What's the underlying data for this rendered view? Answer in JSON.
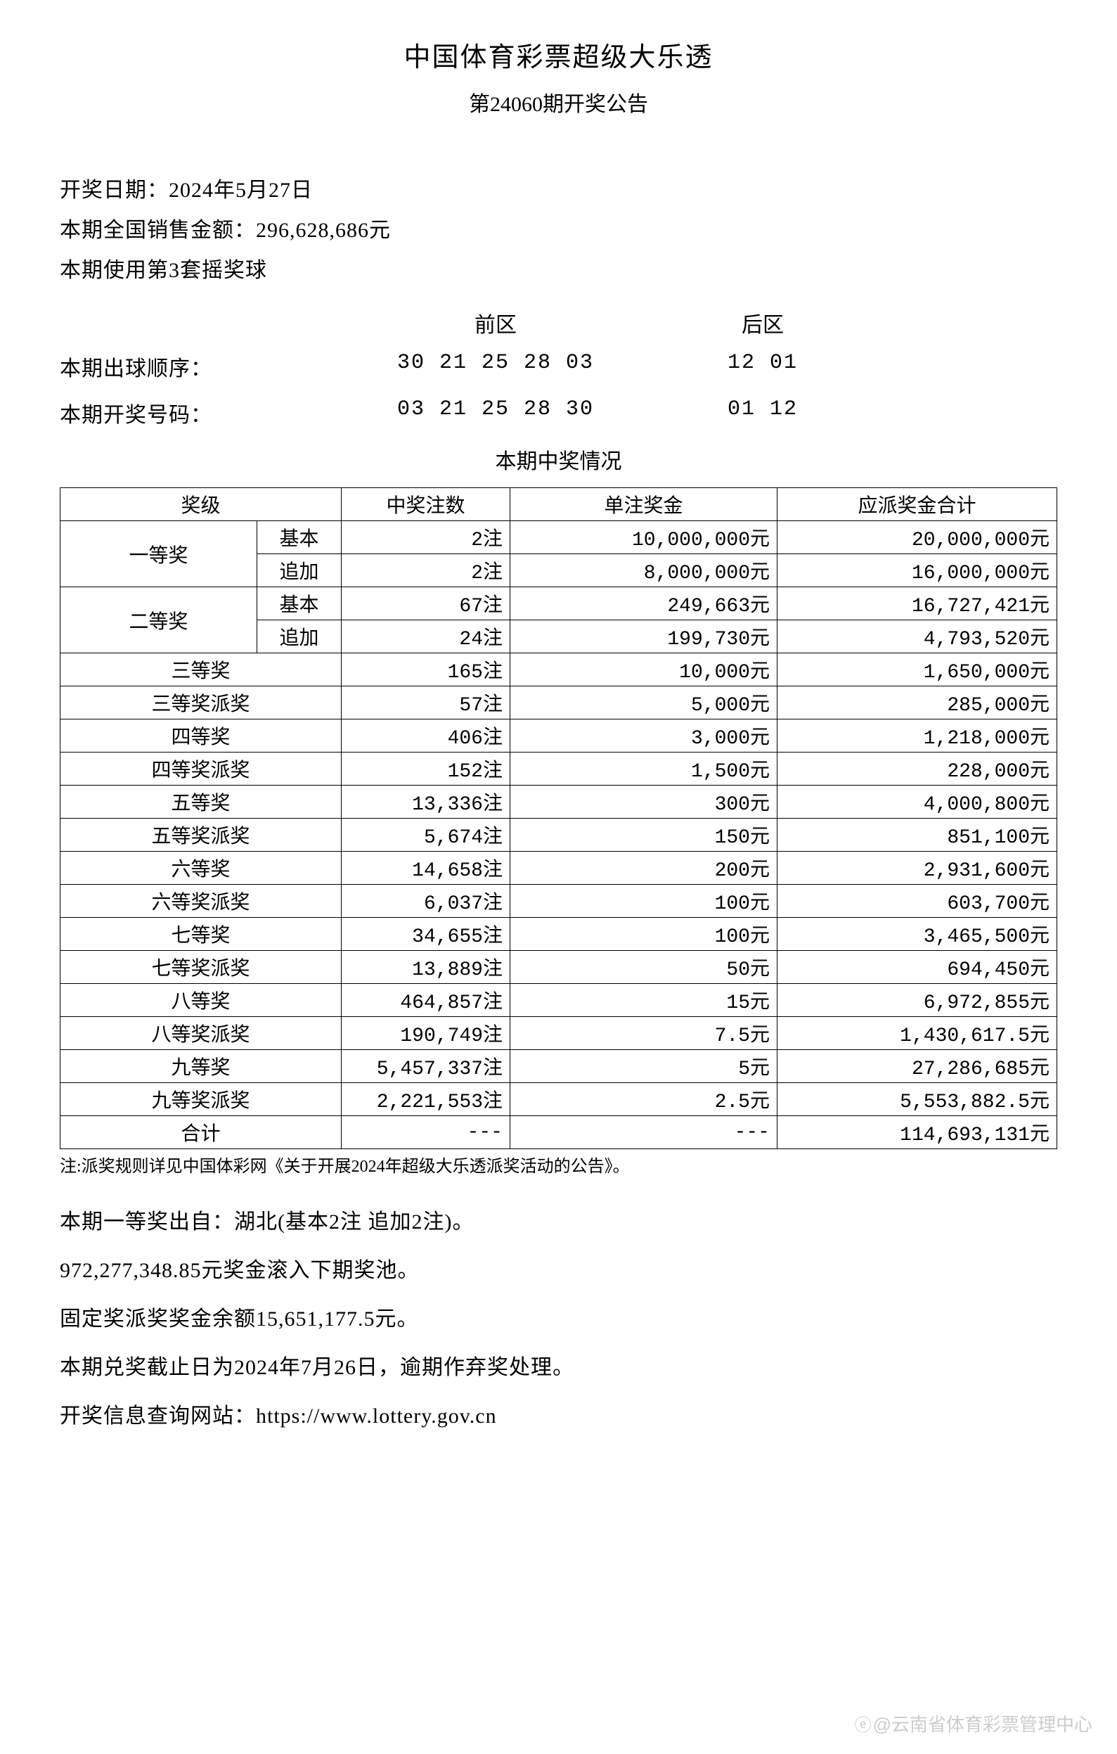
{
  "header": {
    "title": "中国体育彩票超级大乐透",
    "subtitle": "第24060期开奖公告"
  },
  "info": {
    "draw_date": "开奖日期：2024年5月27日",
    "sales_amount": "本期全国销售金额：296,628,686元",
    "ball_set": "本期使用第3套摇奖球"
  },
  "numbers": {
    "front_label": "前区",
    "back_label": "后区",
    "draw_order_label": "本期出球顺序：",
    "draw_order_front": "30 21 25 28 03",
    "draw_order_back": "12 01",
    "winning_label": "本期开奖号码：",
    "winning_front": "03 21 25 28 30",
    "winning_back": "01 12"
  },
  "prize_section_title": "本期中奖情况",
  "table": {
    "columns": [
      "奖级",
      "中奖注数",
      "单注奖金",
      "应派奖金合计"
    ],
    "first_prize": {
      "label": "一等奖",
      "basic_label": "基本",
      "basic_count": "2注",
      "basic_amount": "10,000,000元",
      "basic_total": "20,000,000元",
      "add_label": "追加",
      "add_count": "2注",
      "add_amount": "8,000,000元",
      "add_total": "16,000,000元"
    },
    "second_prize": {
      "label": "二等奖",
      "basic_label": "基本",
      "basic_count": "67注",
      "basic_amount": "249,663元",
      "basic_total": "16,727,421元",
      "add_label": "追加",
      "add_count": "24注",
      "add_amount": "199,730元",
      "add_total": "4,793,520元"
    },
    "rows": [
      {
        "level": "三等奖",
        "count": "165注",
        "amount": "10,000元",
        "total": "1,650,000元"
      },
      {
        "level": "三等奖派奖",
        "count": "57注",
        "amount": "5,000元",
        "total": "285,000元"
      },
      {
        "level": "四等奖",
        "count": "406注",
        "amount": "3,000元",
        "total": "1,218,000元"
      },
      {
        "level": "四等奖派奖",
        "count": "152注",
        "amount": "1,500元",
        "total": "228,000元"
      },
      {
        "level": "五等奖",
        "count": "13,336注",
        "amount": "300元",
        "total": "4,000,800元"
      },
      {
        "level": "五等奖派奖",
        "count": "5,674注",
        "amount": "150元",
        "total": "851,100元"
      },
      {
        "level": "六等奖",
        "count": "14,658注",
        "amount": "200元",
        "total": "2,931,600元"
      },
      {
        "level": "六等奖派奖",
        "count": "6,037注",
        "amount": "100元",
        "total": "603,700元"
      },
      {
        "level": "七等奖",
        "count": "34,655注",
        "amount": "100元",
        "total": "3,465,500元"
      },
      {
        "level": "七等奖派奖",
        "count": "13,889注",
        "amount": "50元",
        "total": "694,450元"
      },
      {
        "level": "八等奖",
        "count": "464,857注",
        "amount": "15元",
        "total": "6,972,855元"
      },
      {
        "level": "八等奖派奖",
        "count": "190,749注",
        "amount": "7.5元",
        "total": "1,430,617.5元"
      },
      {
        "level": "九等奖",
        "count": "5,457,337注",
        "amount": "5元",
        "total": "27,286,685元"
      },
      {
        "level": "九等奖派奖",
        "count": "2,221,553注",
        "amount": "2.5元",
        "total": "5,553,882.5元"
      }
    ],
    "sum": {
      "label": "合计",
      "count": "---",
      "amount": "---",
      "total": "114,693,131元"
    }
  },
  "note": "注:派奖规则详见中国体彩网《关于开展2024年超级大乐透派奖活动的公告》。",
  "footer": {
    "line1": "本期一等奖出自：湖北(基本2注 追加2注)。",
    "line2": "972,277,348.85元奖金滚入下期奖池。",
    "line3": "固定奖派奖奖金余额15,651,177.5元。",
    "line4": "本期兑奖截止日为2024年7月26日，逾期作弃奖处理。",
    "line5": "开奖信息查询网站：https://www.lottery.gov.cn"
  },
  "watermark": "@云南省体育彩票管理中心"
}
